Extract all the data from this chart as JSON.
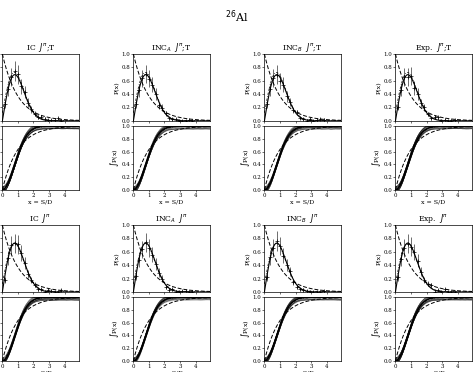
{
  "title": "$^{26}$Al",
  "row1_titles": [
    "IC  $J^{\\pi}$;T",
    "INC$_A$  $J^{\\pi}$;T",
    "INC$_B$  $J^{\\pi}$;T",
    "Exp.  $J^{\\pi}$;T"
  ],
  "row2_titles": [
    "IC  $J^{\\pi}$",
    "INC$_A$  $J^{\\pi}$",
    "INC$_B$  $J^{\\pi}$",
    "Exp.  $J^{\\pi}$"
  ],
  "xlabel": "x = S/D",
  "ylabel_pdf": "P(x)",
  "ylabel_cdf": "\\intP(x)",
  "xlim": [
    0,
    4.9
  ],
  "ylim_pdf": [
    0.0,
    1.0
  ],
  "ylim_cdf": [
    0.0,
    1.0
  ],
  "xticks": [
    0,
    1,
    2,
    3,
    4
  ],
  "yticks": [
    0.0,
    0.2,
    0.4,
    0.6,
    0.8,
    1.0
  ],
  "pdf_peak_row1": 0.68,
  "pdf_peak_row2": 0.72,
  "n_cdf_lines": 60
}
